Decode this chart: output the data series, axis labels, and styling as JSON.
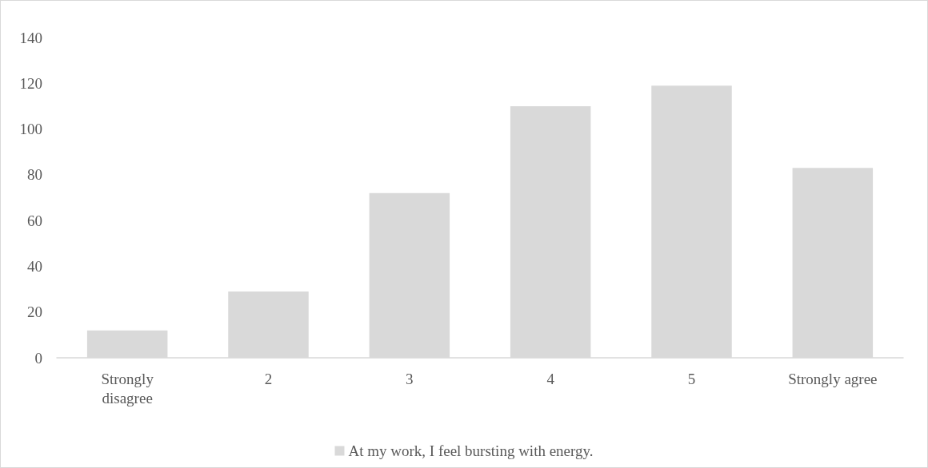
{
  "chart_data": {
    "type": "bar",
    "categories": [
      "Strongly\ndisagree",
      "2",
      "3",
      "4",
      "5",
      "Strongly agree"
    ],
    "series": [
      {
        "name": "At my work, I feel bursting with energy.",
        "color": "#d9d9d9",
        "values": [
          12,
          29,
          72,
          110,
          119,
          83
        ]
      }
    ],
    "ylim": [
      0,
      140
    ],
    "yticks": [
      0,
      20,
      40,
      60,
      80,
      100,
      120,
      140
    ],
    "grid": false,
    "legend": "bottom"
  }
}
